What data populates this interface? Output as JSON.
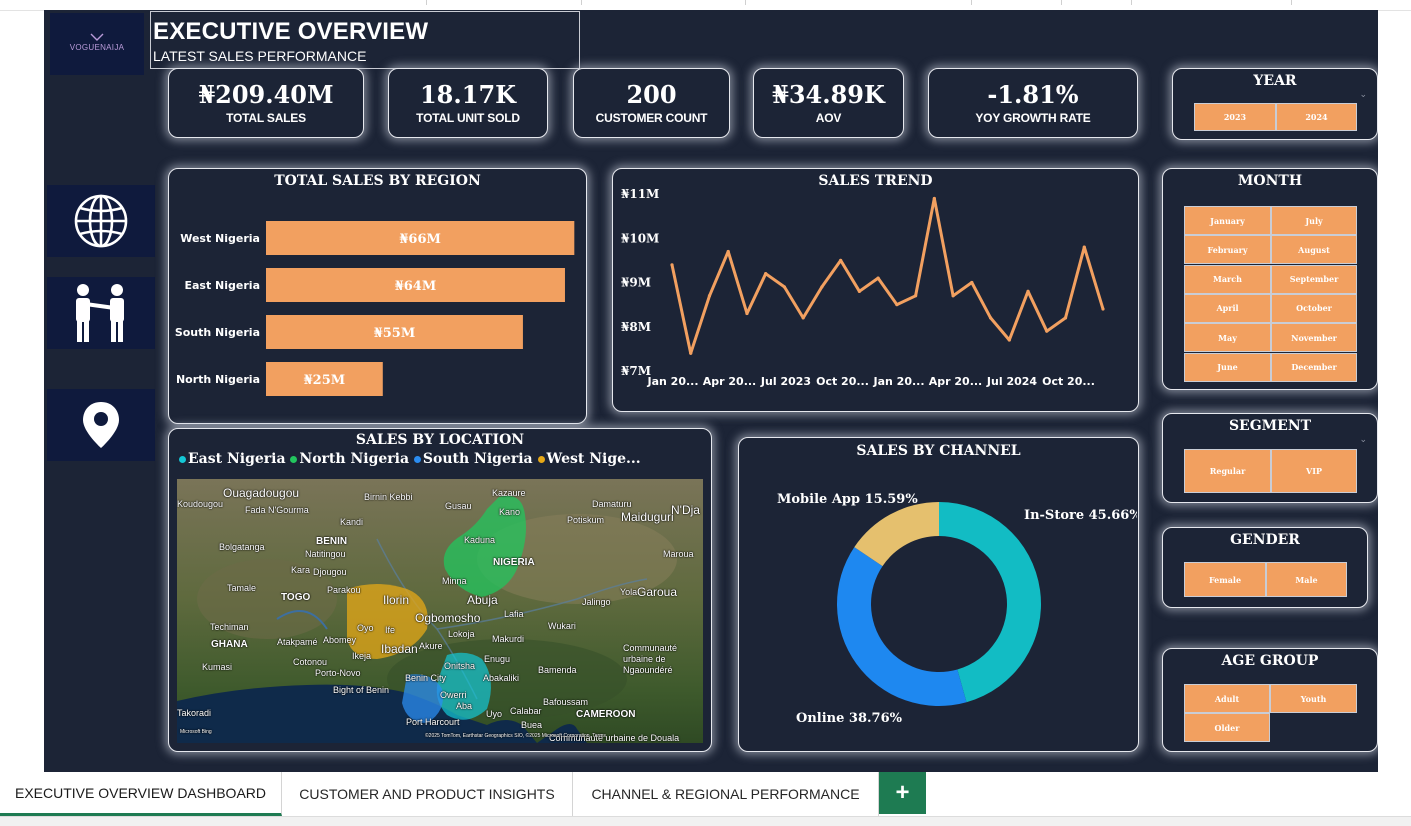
{
  "dashboard": {
    "logo_text": "VOGUENAIJA",
    "title": "EXECUTIVE OVERVIEW",
    "subtitle": "LATEST SALES PERFORMANCE"
  },
  "kpis": [
    {
      "value": "₦209.40M",
      "label": "TOTAL SALES"
    },
    {
      "value": "18.17K",
      "label": "TOTAL UNIT SOLD"
    },
    {
      "value": "200",
      "label": "CUSTOMER COUNT"
    },
    {
      "value": "₦34.89K",
      "label": "AOV"
    },
    {
      "value": "-1.81%",
      "label": "YOY GROWTH RATE"
    }
  ],
  "slicers": {
    "year": {
      "title": "YEAR",
      "options": [
        "2023",
        "2024"
      ]
    },
    "month": {
      "title": "MONTH",
      "options": [
        "January",
        "July",
        "February",
        "August",
        "March",
        "September",
        "April",
        "October",
        "May",
        "November",
        "June",
        "December"
      ]
    },
    "segment": {
      "title": "SEGMENT",
      "options": [
        "Regular",
        "VIP"
      ]
    },
    "gender": {
      "title": "GENDER",
      "options": [
        "Female",
        "Male"
      ]
    },
    "age_group": {
      "title": "AGE GROUP",
      "options": [
        "Adult",
        "Youth",
        "Older"
      ]
    }
  },
  "colors": {
    "background": "#1c2436",
    "accent": "#f2a060",
    "nav": "#0f1a3d",
    "east": "#14c7d6",
    "north": "#22c55e",
    "south": "#2b8cf0",
    "west": "#e6a817",
    "instore": "#12bcc4",
    "online": "#1e88f0",
    "mobile": "#e5c06e",
    "tab_active": "#1e7b52"
  },
  "nav_icons": [
    "globe-icon",
    "handshake-icon",
    "location-pin-icon"
  ],
  "region_chart": {
    "title": "TOTAL SALES BY REGION",
    "chart_data": {
      "type": "bar",
      "orientation": "horizontal",
      "categories": [
        "West Nigeria",
        "East Nigeria",
        "South Nigeria",
        "North Nigeria"
      ],
      "values": [
        66,
        64,
        55,
        25
      ],
      "value_labels": [
        "₦66M",
        "₦64M",
        "₦55M",
        "₦25M"
      ],
      "unit": "₦M",
      "xlim": [
        0,
        70
      ]
    }
  },
  "trend_chart": {
    "title": "SALES TREND",
    "chart_data": {
      "type": "line",
      "y_ticks": [
        "₦11M",
        "₦10M",
        "₦9M",
        "₦8M",
        "₦7M"
      ],
      "x_ticks": [
        "Jan 20...",
        "Apr 20...",
        "Jul 2023",
        "Oct 20...",
        "Jan 20...",
        "Apr 20...",
        "Jul 2024",
        "Oct 20..."
      ],
      "ylim": [
        7,
        11
      ],
      "y_unit": "₦M",
      "x": [
        "2023-01",
        "2023-02",
        "2023-03",
        "2023-04",
        "2023-05",
        "2023-06",
        "2023-07",
        "2023-08",
        "2023-09",
        "2023-10",
        "2023-11",
        "2023-12",
        "2024-01",
        "2024-02",
        "2024-03",
        "2024-04",
        "2024-05",
        "2024-06",
        "2024-07",
        "2024-08",
        "2024-09",
        "2024-10",
        "2024-11",
        "2024-12"
      ],
      "values": [
        9.4,
        7.4,
        8.7,
        9.7,
        8.3,
        9.2,
        8.9,
        8.2,
        8.9,
        9.5,
        8.8,
        9.1,
        8.5,
        8.7,
        10.9,
        8.7,
        9.0,
        8.2,
        7.7,
        8.8,
        7.9,
        8.2,
        9.8,
        8.4
      ]
    }
  },
  "location_map": {
    "title": "SALES BY LOCATION",
    "legend": [
      {
        "name": "East Nigeria"
      },
      {
        "name": "North Nigeria"
      },
      {
        "name": "South Nigeria"
      },
      {
        "name": "West Nige..."
      }
    ],
    "labels": [
      "Ouagadougou",
      "Koudougou",
      "Fada N'Gourma",
      "Birnin Kebbi",
      "Gusau",
      "Kazaure",
      "Kano",
      "Damaturu",
      "Potiskum",
      "Maiduguri",
      "N'Dja",
      "Kandi",
      "BENIN",
      "Natitingou",
      "Djougou",
      "Bolgatanga",
      "Kara",
      "Tamale",
      "TOGO",
      "Parakou",
      "Kaduna",
      "NIGERIA",
      "Minna",
      "Abuja",
      "Jalingo",
      "Yola",
      "Garoua",
      "Maroua",
      "Ilorin",
      "Ogbomosho",
      "Oyo",
      "Ife",
      "Ibadan",
      "Akure",
      "Lokoja",
      "Lafia",
      "Makurdi",
      "Wukari",
      "Techiman",
      "Atakpamé",
      "Abomey",
      "Ikeja",
      "GHANA",
      "Kumasi",
      "Cotonou",
      "Porto-Novo",
      "Bight of Benin",
      "Benin City",
      "Onitsha",
      "Enugu",
      "Owerri",
      "Abakaliki",
      "Uyo",
      "Aba",
      "Port Harcourt",
      "Calabar",
      "Bamenda",
      "Buea",
      "CAMEROON",
      "Bafoussam",
      "Communauté urbaine de Ngaoundéré",
      "Communauté urbaine de Douala",
      "Takoradi",
      "Microsoft Bing",
      "©2025 TomTom, Earthstar Geographics SIO, ©2025 Microsoft Corporation, Terms"
    ]
  },
  "channel_chart": {
    "title": "SALES BY CHANNEL",
    "chart_data": {
      "type": "pie",
      "donut": true,
      "categories": [
        "In-Store",
        "Online",
        "Mobile App"
      ],
      "values": [
        45.66,
        38.76,
        15.59
      ],
      "labels": [
        "In-Store 45.66%",
        "Online 38.76%",
        "Mobile App 15.59%"
      ]
    }
  },
  "tabs": [
    {
      "label": "EXECUTIVE OVERVIEW DASHBOARD"
    },
    {
      "label": "CUSTOMER AND PRODUCT INSIGHTS"
    },
    {
      "label": "CHANNEL & REGIONAL PERFORMANCE"
    }
  ],
  "add_tab_label": "+"
}
